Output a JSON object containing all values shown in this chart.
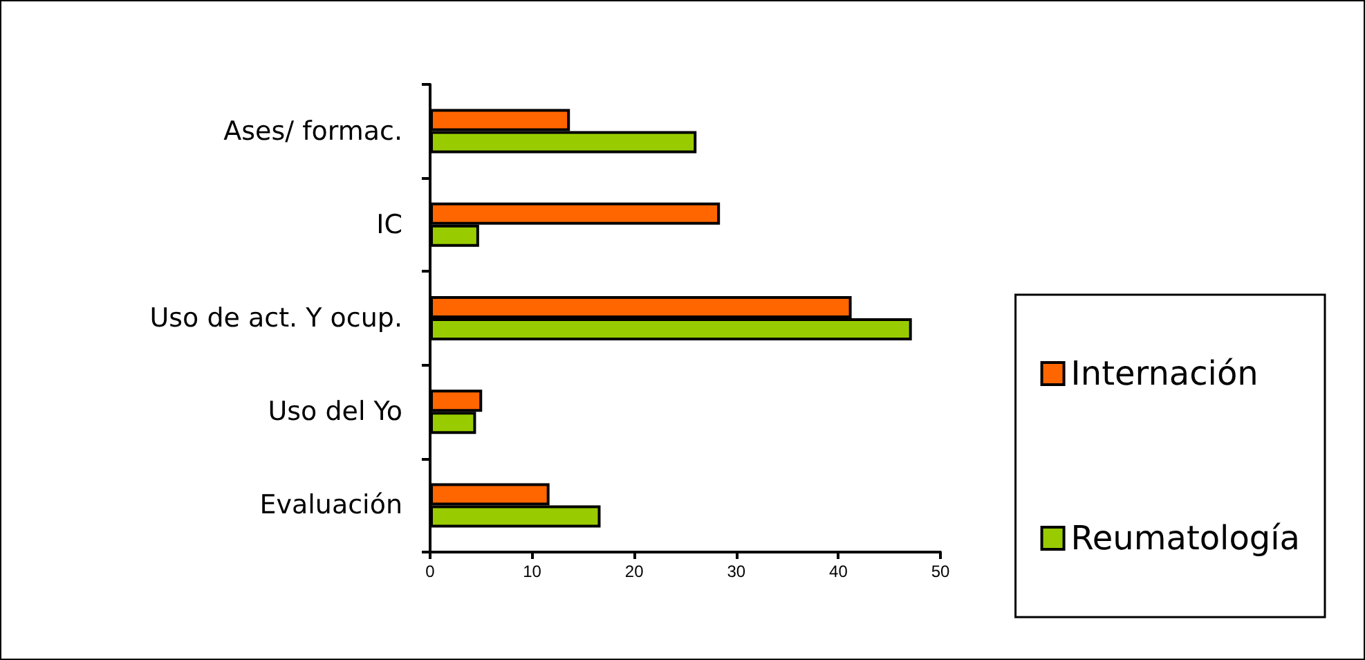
{
  "chart_data": {
    "type": "bar",
    "orientation": "horizontal",
    "categories": [
      "Ases/ formac.",
      "IC",
      "Uso de act. Y ocup.",
      "Uso del Yo",
      "Evaluación"
    ],
    "series": [
      {
        "name": "Internación",
        "color": "#ff6600",
        "values": [
          13.7,
          28.4,
          41.3,
          5.1,
          11.7
        ]
      },
      {
        "name": "Reumatología",
        "color": "#99cc00",
        "values": [
          26.1,
          4.8,
          47.2,
          4.5,
          16.7
        ]
      }
    ],
    "xlim": [
      0,
      50
    ],
    "xticks": [
      0,
      10,
      20,
      30,
      40,
      50
    ],
    "grid": false,
    "legend": "bottom right"
  }
}
